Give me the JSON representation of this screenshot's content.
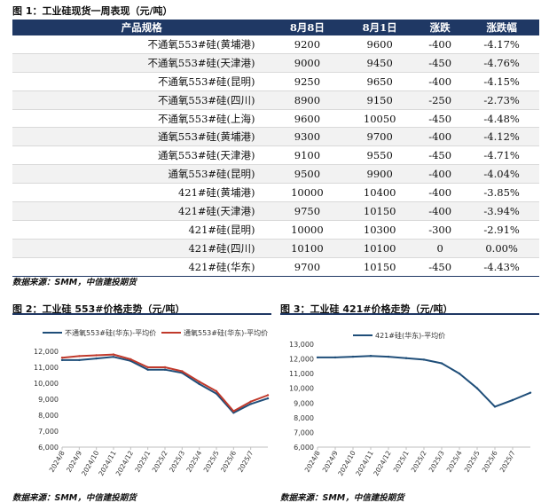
{
  "figure1": {
    "title": "图 1：工业硅现货一周表现（元/吨）",
    "headers": [
      "产品规格",
      "8月8日",
      "8月1日",
      "涨跌",
      "涨跌幅"
    ],
    "rows": [
      [
        "不通氧553#硅(黄埔港)",
        "9200",
        "9600",
        "-400",
        "-4.17%"
      ],
      [
        "不通氧553#硅(天津港)",
        "9000",
        "9450",
        "-450",
        "-4.76%"
      ],
      [
        "不通氧553#硅(昆明)",
        "9250",
        "9650",
        "-400",
        "-4.15%"
      ],
      [
        "不通氧553#硅(四川)",
        "8900",
        "9150",
        "-250",
        "-2.73%"
      ],
      [
        "不通氧553#硅(上海)",
        "9600",
        "10050",
        "-450",
        "-4.48%"
      ],
      [
        "通氧553#硅(黄埔港)",
        "9300",
        "9700",
        "-400",
        "-4.12%"
      ],
      [
        "通氧553#硅(天津港)",
        "9100",
        "9550",
        "-450",
        "-4.71%"
      ],
      [
        "通氧553#硅(昆明)",
        "9500",
        "9900",
        "-400",
        "-4.04%"
      ],
      [
        "421#硅(黄埔港)",
        "10000",
        "10400",
        "-400",
        "-3.85%"
      ],
      [
        "421#硅(天津港)",
        "9750",
        "10150",
        "-400",
        "-3.94%"
      ],
      [
        "421#硅(昆明)",
        "10000",
        "10300",
        "-300",
        "-2.91%"
      ],
      [
        "421#硅(四川)",
        "10100",
        "10100",
        "0",
        "0.00%"
      ],
      [
        "421#硅(华东)",
        "9700",
        "10150",
        "-450",
        "-4.43%"
      ]
    ],
    "source": "数据来源：SMM，中信建投期货"
  },
  "figure2": {
    "title": "图 2：工业硅 553#价格走势（元/吨）",
    "source": "数据来源：SMM，中信建投期货"
  },
  "figure3": {
    "title": "图 3：工业硅 421#价格走势（元/吨）",
    "source": "数据来源：SMM，中信建投期货"
  },
  "chart_data": [
    {
      "type": "line",
      "title": "工业硅 553#价格走势（元/吨）",
      "x": [
        "2024/8",
        "2024/9",
        "2024/10",
        "2024/11",
        "2024/12",
        "2025/1",
        "2025/2",
        "2025/3",
        "2025/4",
        "2025/5",
        "2025/6",
        "2025/7",
        "2025/8"
      ],
      "x_ticks": [
        "2024/8",
        "2024/9",
        "2024/10",
        "2024/11",
        "2024/12",
        "2025/1",
        "2025/2",
        "2025/3",
        "2025/4",
        "2025/5",
        "2025/6",
        "2025/7"
      ],
      "series": [
        {
          "name": "不通氧553#硅(华东)-平均价",
          "color": "#1f4e79",
          "values": [
            11450,
            11450,
            11550,
            11650,
            11400,
            10850,
            10850,
            10650,
            9950,
            9350,
            8150,
            8700,
            9050
          ]
        },
        {
          "name": "通氧553#硅(华东)-平均价",
          "color": "#c0392b",
          "values": [
            11600,
            11700,
            11750,
            11800,
            11500,
            11000,
            11000,
            10750,
            10100,
            9500,
            8250,
            8850,
            9250
          ]
        }
      ],
      "ylim": [
        6000,
        12000
      ],
      "yticks": [
        "6,000",
        "7,000",
        "8,000",
        "9,000",
        "10,000",
        "11,000",
        "12,000"
      ],
      "legend": "top"
    },
    {
      "type": "line",
      "title": "工业硅 421#价格走势（元/吨）",
      "x": [
        "2024/8",
        "2024/9",
        "2024/10",
        "2024/11",
        "2024/12",
        "2025/1",
        "2025/2",
        "2025/3",
        "2025/4",
        "2025/5",
        "2025/6",
        "2025/7",
        "2025/8"
      ],
      "x_ticks": [
        "2024/8",
        "2024/9",
        "2024/10",
        "2024/11",
        "2024/12",
        "2025/1",
        "2025/2",
        "2025/3",
        "2025/4",
        "2025/5",
        "2025/6",
        "2025/7"
      ],
      "series": [
        {
          "name": "421#硅(华东)-平均价",
          "color": "#1f4e79",
          "values": [
            12100,
            12100,
            12150,
            12200,
            12150,
            12050,
            11950,
            11700,
            11000,
            10000,
            8750,
            9200,
            9700
          ]
        }
      ],
      "ylim": [
        6000,
        13000
      ],
      "yticks": [
        "6,000",
        "7,000",
        "8,000",
        "9,000",
        "10,000",
        "11,000",
        "12,000",
        "13,000"
      ],
      "legend": "top"
    }
  ]
}
